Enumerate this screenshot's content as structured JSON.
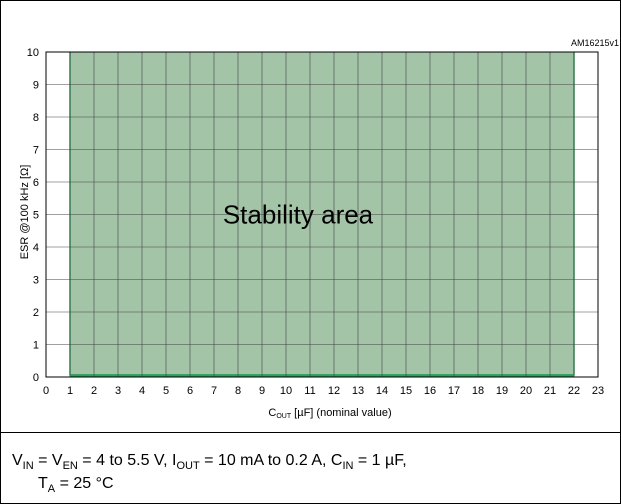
{
  "chart_data": {
    "type": "area",
    "id_label": "AM16215v1",
    "xlabel_main": "C",
    "xlabel_sub": "OUT",
    "xlabel_rest": " [µF] (nominal value)",
    "ylabel": "ESR @100 kHz [Ω]",
    "xlim": [
      0,
      23
    ],
    "ylim": [
      0,
      10
    ],
    "x_ticks": [
      "0",
      "1",
      "2",
      "3",
      "4",
      "5",
      "6",
      "7",
      "8",
      "9",
      "10",
      "11",
      "12",
      "13",
      "14",
      "15",
      "16",
      "17",
      "18",
      "19",
      "20",
      "21",
      "22",
      "23"
    ],
    "y_ticks": [
      "0",
      "1",
      "2",
      "3",
      "4",
      "5",
      "6",
      "7",
      "8",
      "9",
      "10"
    ],
    "grid": true,
    "region": {
      "label": "Stability area",
      "x_range": [
        1,
        22
      ],
      "y_range": [
        0.05,
        10
      ],
      "fill": "#a3c4a7",
      "edge": "#2e9e5a"
    },
    "annotation_x": 10.5,
    "annotation_y": 5
  },
  "caption": {
    "p1": "V",
    "s1": "IN",
    "p2": " = V",
    "s2": "EN",
    "p3": " = 4 to 5.5 V, I",
    "s3": "OUT",
    "p4": " = 10 mA to 0.2 A, C",
    "s4": "IN",
    "p5": " = 1 µF,",
    "p6": "T",
    "s6": "A",
    "p7": " = 25 °C"
  }
}
